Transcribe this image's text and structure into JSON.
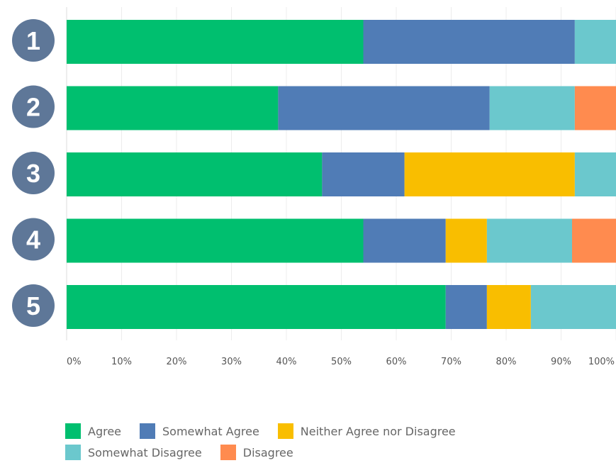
{
  "chart_data": {
    "type": "bar",
    "orientation": "horizontal",
    "stacked": true,
    "categories": [
      "1",
      "2",
      "3",
      "4",
      "5"
    ],
    "series": [
      {
        "name": "Agree",
        "color": "#00bf6f",
        "values": [
          54,
          38.5,
          46.5,
          54,
          69
        ]
      },
      {
        "name": "Somewhat Agree",
        "color": "#507cb6",
        "values": [
          38.5,
          38.5,
          15,
          15,
          7.5
        ]
      },
      {
        "name": "Neither Agree nor Disagree",
        "color": "#f9be00",
        "values": [
          0,
          0,
          31,
          7.5,
          8
        ]
      },
      {
        "name": "Somewhat Disagree",
        "color": "#6bc8cd",
        "values": [
          7.5,
          15.5,
          7.5,
          15.5,
          15.5
        ]
      },
      {
        "name": "Disagree",
        "color": "#ff8b4f",
        "values": [
          0,
          7.5,
          0,
          8,
          0
        ]
      }
    ],
    "xlim": [
      0,
      100
    ],
    "x_ticks": [
      "0%",
      "10%",
      "20%",
      "30%",
      "40%",
      "50%",
      "60%",
      "70%",
      "80%",
      "90%",
      "100%"
    ],
    "grid": true,
    "legend_position": "bottom-left",
    "badge_color": "#5e7798"
  }
}
